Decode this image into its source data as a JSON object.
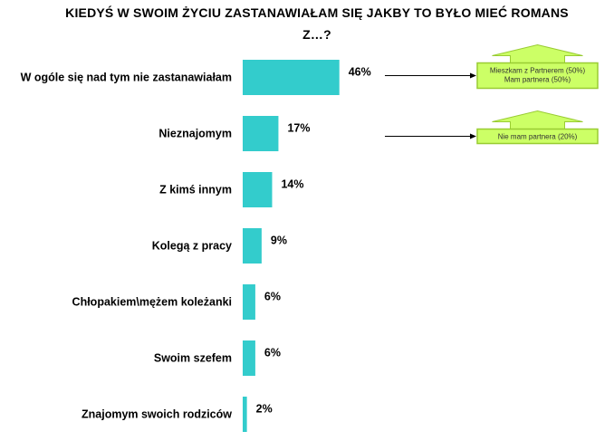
{
  "title_line1": "KIEDYŚ W SWOIM ŻYCIU ZASTANAWIAŁAM SIĘ JAKBY TO BYŁO MIEĆ ROMANS",
  "title_line2": "Z…?",
  "colors": {
    "bar": "#33cccc",
    "note_fill": "#ccff66",
    "note_border": "#99cc33"
  },
  "chart_data": {
    "type": "bar",
    "orientation": "horizontal",
    "title": "KIEDYŚ W SWOIM ŻYCIU ZASTANAWIAŁAM SIĘ JAKBY TO BYŁO MIEĆ ROMANS Z…?",
    "categories": [
      "W ogóle się nad tym nie zastanawiałam",
      "Nieznajomym",
      "Z kimś innym",
      "Kolegą z pracy",
      "Chłopakiem\\mężem koleżanki",
      "Swoim szefem",
      "Znajomym swoich rodziców"
    ],
    "values": [
      46,
      17,
      14,
      9,
      6,
      6,
      2
    ],
    "value_labels": [
      "46%",
      "17%",
      "14%",
      "9%",
      "6%",
      "6%",
      "2%"
    ],
    "unit": "%",
    "xlim": [
      0,
      100
    ],
    "grid": false,
    "legend": "none",
    "annotations": [
      {
        "category_index": 0,
        "lines": [
          "Mieszkam z Partnerem (50%)",
          "Mam partnera (50%)"
        ]
      },
      {
        "category_index": 1,
        "lines": [
          "Nie mam partnera (20%)"
        ]
      }
    ]
  }
}
